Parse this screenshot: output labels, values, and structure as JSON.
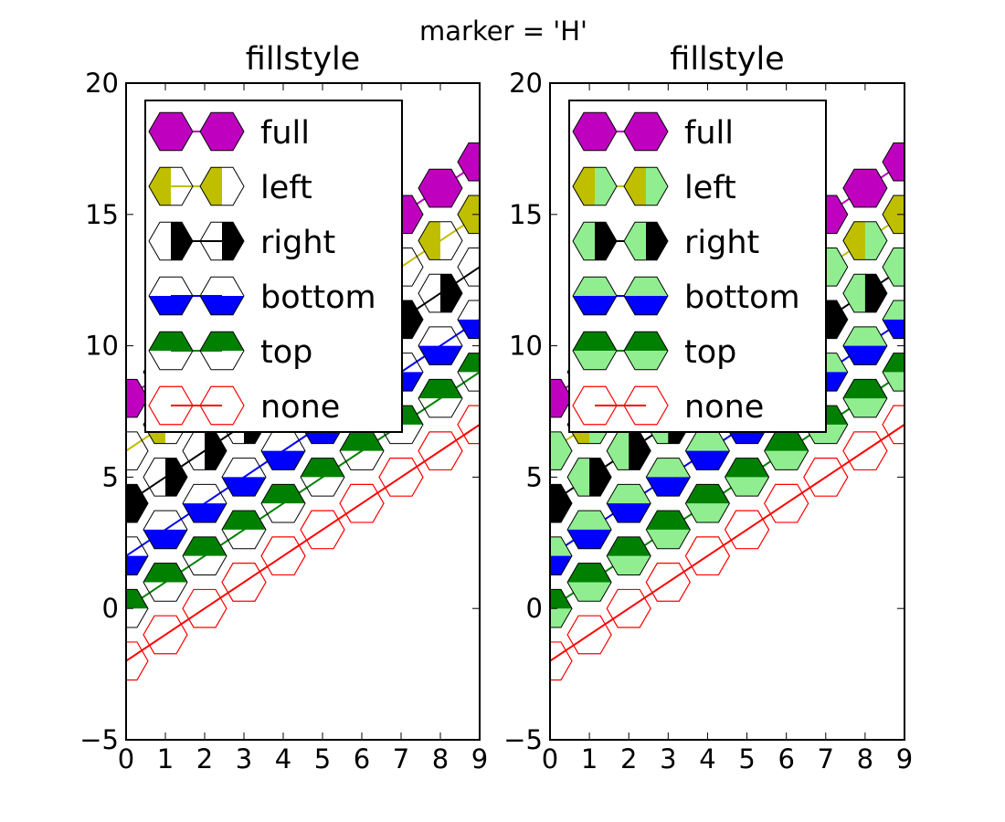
{
  "suptitle": "marker = 'H'",
  "chart_data": [
    {
      "type": "line",
      "title": "fillstyle",
      "marker": "H",
      "xlim": [
        0,
        9
      ],
      "ylim": [
        -5,
        20
      ],
      "x_ticks": [
        0,
        1,
        2,
        3,
        4,
        5,
        6,
        7,
        8,
        9
      ],
      "y_ticks": [
        -5,
        0,
        5,
        10,
        15,
        20
      ],
      "x_tick_labels": [
        "0",
        "1",
        "2",
        "3",
        "4",
        "5",
        "6",
        "7",
        "8",
        "9"
      ],
      "y_tick_labels": [
        "−5",
        "0",
        "5",
        "10",
        "15",
        "20"
      ],
      "x": [
        0,
        1,
        2,
        3,
        4,
        5,
        6,
        7,
        8,
        9
      ],
      "alternate_fill": null,
      "legend_position": "upper-left",
      "series": [
        {
          "name": "full",
          "fillstyle": "full",
          "color": "#bf00bf",
          "values": [
            8,
            9,
            10,
            11,
            12,
            13,
            14,
            15,
            16,
            17
          ]
        },
        {
          "name": "left",
          "fillstyle": "left",
          "color": "#bfbf00",
          "values": [
            6,
            7,
            8,
            9,
            10,
            11,
            12,
            13,
            14,
            15
          ]
        },
        {
          "name": "right",
          "fillstyle": "right",
          "color": "#000000",
          "values": [
            4,
            5,
            6,
            7,
            8,
            9,
            10,
            11,
            12,
            13
          ]
        },
        {
          "name": "bottom",
          "fillstyle": "bottom",
          "color": "#0000ff",
          "values": [
            2,
            3,
            4,
            5,
            6,
            7,
            8,
            9,
            10,
            11
          ]
        },
        {
          "name": "top",
          "fillstyle": "top",
          "color": "#008000",
          "values": [
            0,
            1,
            2,
            3,
            4,
            5,
            6,
            7,
            8,
            9
          ]
        },
        {
          "name": "none",
          "fillstyle": "none",
          "color": "#ff0000",
          "values": [
            -2,
            -1,
            0,
            1,
            2,
            3,
            4,
            5,
            6,
            7
          ]
        }
      ]
    },
    {
      "type": "line",
      "title": "fillstyle",
      "marker": "H",
      "xlim": [
        0,
        9
      ],
      "ylim": [
        -5,
        20
      ],
      "x_ticks": [
        0,
        1,
        2,
        3,
        4,
        5,
        6,
        7,
        8,
        9
      ],
      "y_ticks": [
        -5,
        0,
        5,
        10,
        15,
        20
      ],
      "x_tick_labels": [
        "0",
        "1",
        "2",
        "3",
        "4",
        "5",
        "6",
        "7",
        "8",
        "9"
      ],
      "y_tick_labels": [
        "−5",
        "0",
        "5",
        "10",
        "15",
        "20"
      ],
      "x": [
        0,
        1,
        2,
        3,
        4,
        5,
        6,
        7,
        8,
        9
      ],
      "alternate_fill": "#90ee90",
      "legend_position": "upper-left",
      "series": [
        {
          "name": "full",
          "fillstyle": "full",
          "color": "#bf00bf",
          "values": [
            8,
            9,
            10,
            11,
            12,
            13,
            14,
            15,
            16,
            17
          ]
        },
        {
          "name": "left",
          "fillstyle": "left",
          "color": "#bfbf00",
          "values": [
            6,
            7,
            8,
            9,
            10,
            11,
            12,
            13,
            14,
            15
          ]
        },
        {
          "name": "right",
          "fillstyle": "right",
          "color": "#000000",
          "values": [
            4,
            5,
            6,
            7,
            8,
            9,
            10,
            11,
            12,
            13
          ]
        },
        {
          "name": "bottom",
          "fillstyle": "bottom",
          "color": "#0000ff",
          "values": [
            2,
            3,
            4,
            5,
            6,
            7,
            8,
            9,
            10,
            11
          ]
        },
        {
          "name": "top",
          "fillstyle": "top",
          "color": "#008000",
          "values": [
            0,
            1,
            2,
            3,
            4,
            5,
            6,
            7,
            8,
            9
          ]
        },
        {
          "name": "none",
          "fillstyle": "none",
          "color": "#ff0000",
          "values": [
            -2,
            -1,
            0,
            1,
            2,
            3,
            4,
            5,
            6,
            7
          ]
        }
      ]
    }
  ]
}
